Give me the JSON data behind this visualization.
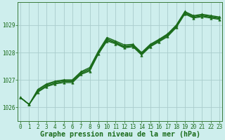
{
  "title": "Graphe pression niveau de la mer (hPa)",
  "bg_color": "#ceeeed",
  "grid_color": "#aacccc",
  "line_color": "#1a6b1a",
  "xlim": [
    -0.3,
    23.3
  ],
  "ylim": [
    1025.5,
    1029.85
  ],
  "yticks": [
    1026,
    1027,
    1028,
    1029
  ],
  "xticks": [
    0,
    1,
    2,
    3,
    4,
    5,
    6,
    7,
    8,
    9,
    10,
    11,
    12,
    13,
    14,
    15,
    16,
    17,
    18,
    19,
    20,
    21,
    22,
    23
  ],
  "series": [
    {
      "x": [
        0,
        1,
        2,
        3,
        4,
        5,
        6,
        7,
        8,
        9,
        10,
        11,
        12,
        13,
        14,
        15,
        16,
        17,
        18,
        19,
        20,
        21,
        22,
        23
      ],
      "y": [
        1026.35,
        1026.1,
        1026.65,
        1026.85,
        1026.95,
        1027.0,
        1027.0,
        1027.3,
        1027.45,
        1028.05,
        1028.55,
        1028.42,
        1028.28,
        1028.3,
        1028.0,
        1028.3,
        1028.48,
        1028.68,
        1029.0,
        1029.5,
        1029.35,
        1029.4,
        1029.35,
        1029.3
      ],
      "marker": true,
      "lw": 1.0
    },
    {
      "x": [
        0,
        1,
        2,
        3,
        4,
        5,
        6,
        7,
        8,
        9,
        10,
        11,
        12,
        13,
        14,
        15,
        16,
        17,
        18,
        19,
        20,
        21,
        22,
        23
      ],
      "y": [
        1026.35,
        1026.1,
        1026.62,
        1026.82,
        1026.92,
        1026.97,
        1026.97,
        1027.27,
        1027.4,
        1028.0,
        1028.5,
        1028.38,
        1028.23,
        1028.27,
        1027.97,
        1028.27,
        1028.45,
        1028.65,
        1028.97,
        1029.47,
        1029.32,
        1029.37,
        1029.32,
        1029.27
      ],
      "marker": false,
      "lw": 1.0
    },
    {
      "x": [
        0,
        1,
        2,
        3,
        4,
        5,
        6,
        7,
        8,
        9,
        10,
        11,
        12,
        13,
        14,
        15,
        16,
        17,
        18,
        19,
        20,
        21,
        22,
        23
      ],
      "y": [
        1026.35,
        1026.1,
        1026.58,
        1026.78,
        1026.88,
        1026.94,
        1026.94,
        1027.23,
        1027.36,
        1027.97,
        1028.46,
        1028.35,
        1028.2,
        1028.24,
        1027.94,
        1028.24,
        1028.42,
        1028.62,
        1028.94,
        1029.44,
        1029.29,
        1029.34,
        1029.29,
        1029.24
      ],
      "marker": false,
      "lw": 1.0
    },
    {
      "x": [
        0,
        1,
        2,
        3,
        4,
        5,
        6,
        7,
        8,
        9,
        10,
        11,
        12,
        13,
        14,
        15,
        16,
        17,
        18,
        19,
        20,
        21,
        22,
        23
      ],
      "y": [
        1026.35,
        1026.1,
        1026.55,
        1026.75,
        1026.85,
        1026.9,
        1026.9,
        1027.2,
        1027.32,
        1027.94,
        1028.42,
        1028.32,
        1028.17,
        1028.21,
        1027.91,
        1028.21,
        1028.39,
        1028.58,
        1028.91,
        1029.41,
        1029.26,
        1029.31,
        1029.26,
        1029.21
      ],
      "marker": true,
      "lw": 1.0
    }
  ],
  "marker_style": "^",
  "marker_size": 2.5,
  "tick_fontsize": 5.5,
  "title_fontsize": 7.2,
  "title_color": "#1a6b1a",
  "tick_color": "#1a6b1a",
  "axis_color": "#3a7a3a"
}
